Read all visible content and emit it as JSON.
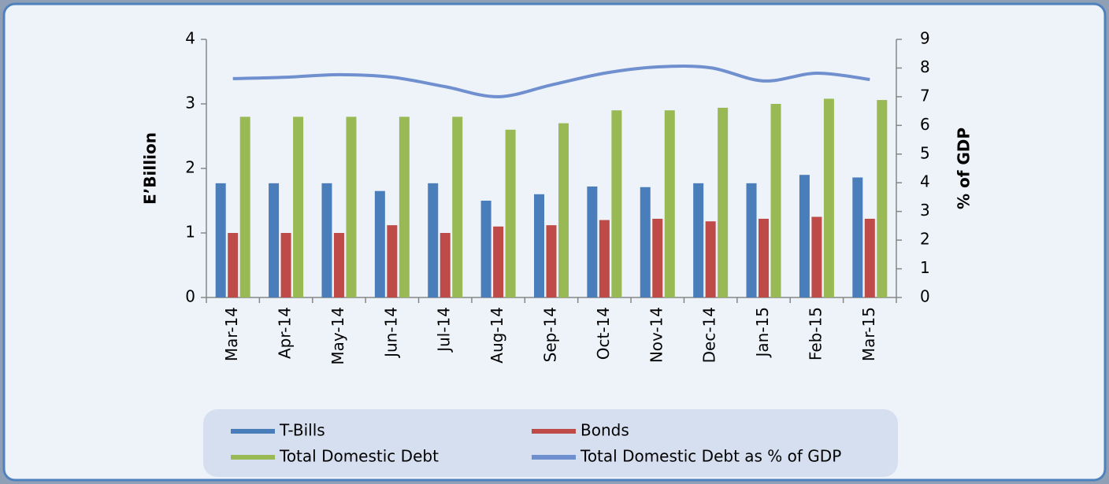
{
  "chart_data": {
    "type": "bar",
    "y_label": "E’Billion",
    "y2_label": "% of GDP",
    "categories": [
      "Mar-14",
      "Apr-14",
      "May-14",
      "Jun-14",
      "Jul-14",
      "Aug-14",
      "Sep-14",
      "Oct-14",
      "Nov-14",
      "Dec-14",
      "Jan-15",
      "Feb-15",
      "Mar-15"
    ],
    "series": [
      {
        "name": "T-Bills",
        "type": "bar",
        "color": "#4a7ebb",
        "values": [
          1.77,
          1.77,
          1.77,
          1.65,
          1.77,
          1.5,
          1.6,
          1.72,
          1.71,
          1.77,
          1.77,
          1.9,
          1.86
        ]
      },
      {
        "name": "Bonds",
        "type": "bar",
        "color": "#be4b48",
        "values": [
          1.0,
          1.0,
          1.0,
          1.12,
          1.0,
          1.1,
          1.12,
          1.2,
          1.22,
          1.18,
          1.22,
          1.25,
          1.22
        ]
      },
      {
        "name": "Total Domestic Debt",
        "type": "bar",
        "color": "#98b954",
        "values": [
          2.8,
          2.8,
          2.8,
          2.8,
          2.8,
          2.6,
          2.7,
          2.9,
          2.9,
          2.94,
          3.0,
          3.08,
          3.06
        ]
      },
      {
        "name": "Total Domestic Debt as % of GDP",
        "type": "line",
        "axis": "y2",
        "color": "#6f8fcf",
        "values": [
          7.63,
          7.68,
          7.77,
          7.68,
          7.35,
          7.0,
          7.41,
          7.82,
          8.04,
          8.01,
          7.55,
          7.82,
          7.6
        ]
      }
    ],
    "ylim": [
      0,
      4
    ],
    "yticks": [
      0,
      1,
      2,
      3,
      4
    ],
    "y2lim": [
      0,
      9
    ],
    "y2ticks": [
      0,
      1,
      2,
      3,
      4,
      5,
      6,
      7,
      8,
      9
    ],
    "legend": "bottom"
  }
}
